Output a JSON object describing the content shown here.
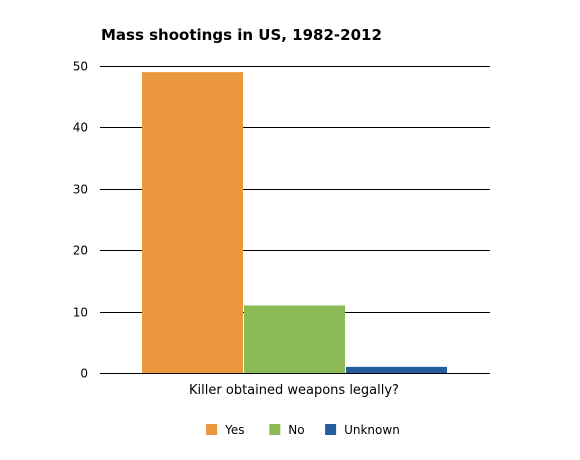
{
  "chart_data": {
    "type": "bar",
    "title": "Mass shootings in US, 1982-2012",
    "xlabel": "Killer obtained weapons legally?",
    "ylabel": "",
    "ylim": [
      0,
      50
    ],
    "yticks": [
      0,
      10,
      20,
      30,
      40,
      50
    ],
    "grid": true,
    "legend_position": "bottom",
    "series": [
      {
        "name": "Yes",
        "value": 49,
        "color": "#ea973d"
      },
      {
        "name": "No",
        "value": 11,
        "color": "#8cbb55"
      },
      {
        "name": "Unknown",
        "value": 1,
        "color": "#255e9b"
      }
    ]
  }
}
